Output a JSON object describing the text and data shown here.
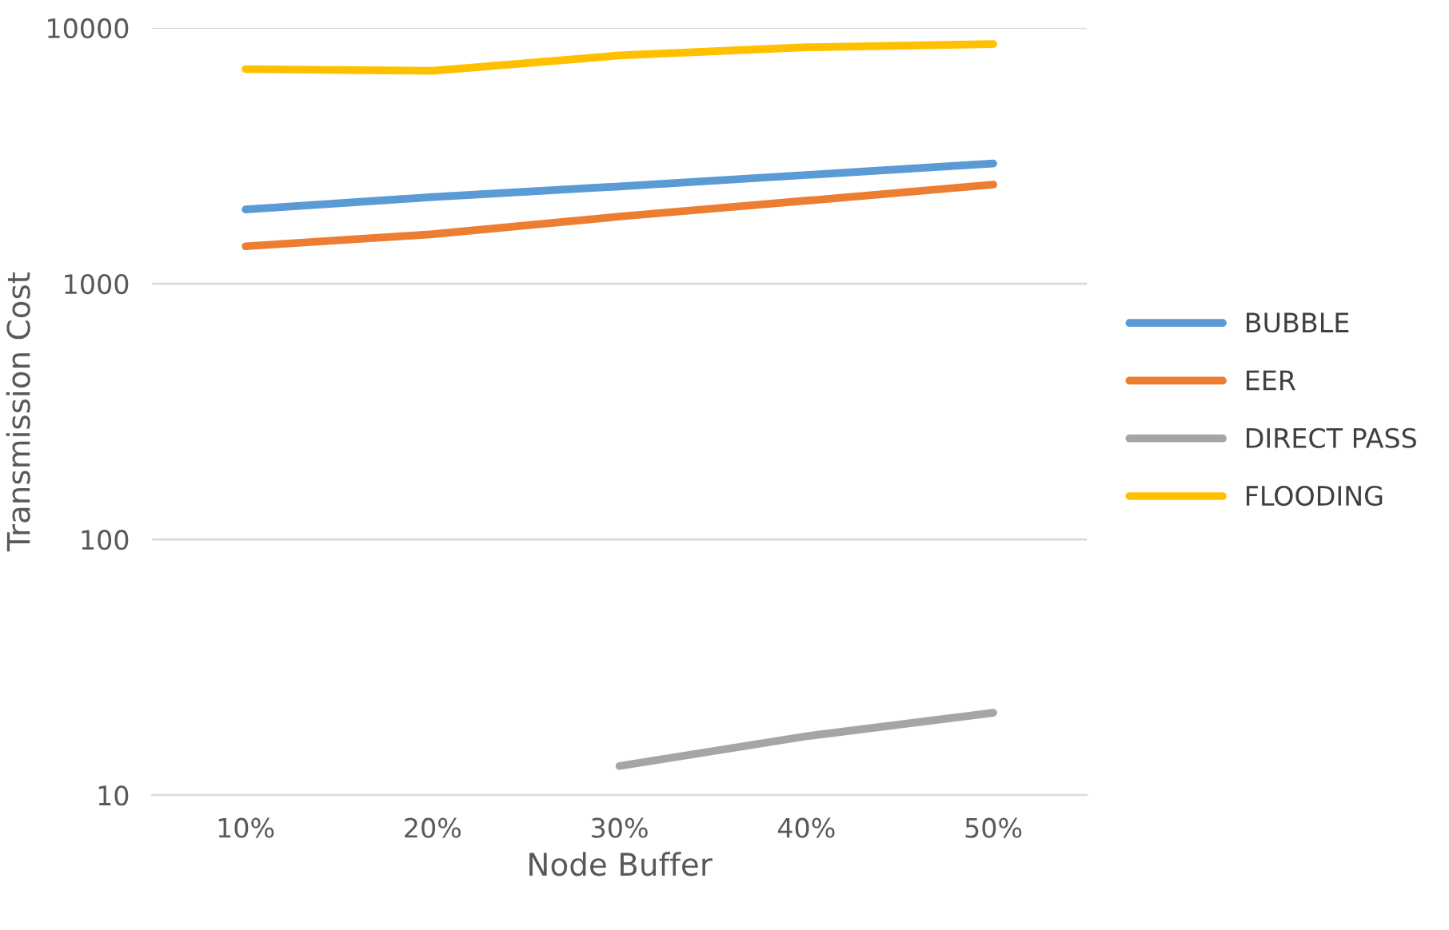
{
  "chart_data": {
    "type": "line",
    "xlabel": "Node Buffer",
    "ylabel": "Transmission Cost",
    "categories": [
      "10%",
      "20%",
      "30%",
      "40%",
      "50%"
    ],
    "series": [
      {
        "name": "BUBBLE",
        "color": "#5b9bd5",
        "values": [
          1950,
          2180,
          2400,
          2660,
          2950
        ]
      },
      {
        "name": "EER",
        "color": "#ed7d31",
        "values": [
          1400,
          1560,
          1830,
          2110,
          2440
        ]
      },
      {
        "name": "DIRECT PASS",
        "color": "#a5a5a5",
        "values": [
          null,
          null,
          13,
          17,
          21
        ]
      },
      {
        "name": "FLOODING",
        "color": "#ffc000",
        "values": [
          6900,
          6800,
          7800,
          8400,
          8650
        ]
      }
    ],
    "log": "y",
    "ylim": [
      10,
      10000
    ],
    "yticks": [
      10,
      100,
      1000,
      10000
    ],
    "grid": "y",
    "legend": "right",
    "line_style": "solid",
    "marker": "none"
  }
}
